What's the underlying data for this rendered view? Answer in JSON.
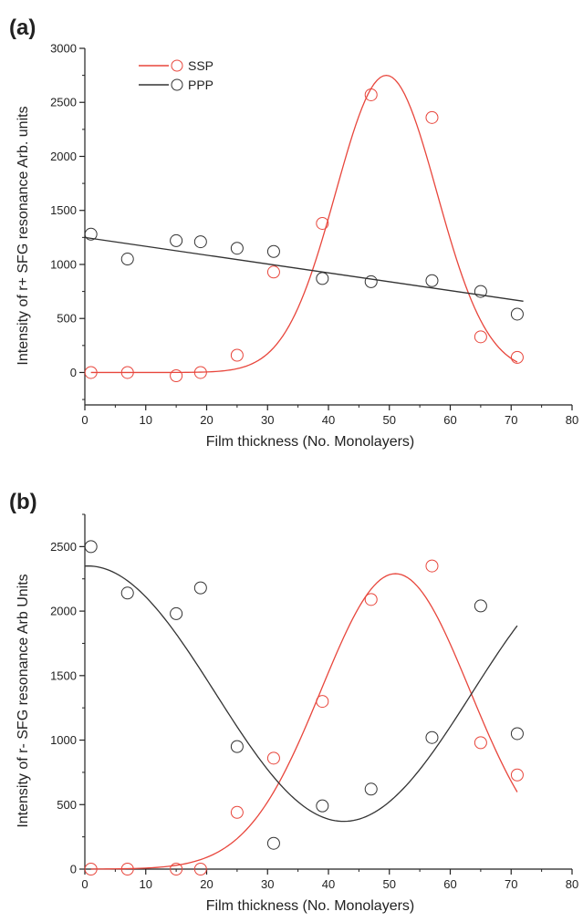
{
  "chart_data": [
    {
      "panel_label": "(a)",
      "type": "scatter",
      "xlabel": "Film thickness (No. Monolayers)",
      "ylabel": "Intensity of r+ SFG resonance Arb. units",
      "xlim": [
        0,
        80
      ],
      "ylim": [
        -300,
        3000
      ],
      "xticks": [
        0,
        10,
        20,
        30,
        40,
        50,
        60,
        70,
        80
      ],
      "yticks": [
        0,
        500,
        1000,
        1500,
        2000,
        2500,
        3000
      ],
      "legend": {
        "placement": "top-left"
      },
      "series": [
        {
          "name": "SSP",
          "color": "#e8463c",
          "points": [
            [
              1,
              0
            ],
            [
              7,
              0
            ],
            [
              15,
              -30
            ],
            [
              19,
              0
            ],
            [
              25,
              160
            ],
            [
              31,
              930
            ],
            [
              39,
              1380
            ],
            [
              47,
              2570
            ],
            [
              57,
              2360
            ],
            [
              65,
              330
            ],
            [
              71,
              140
            ]
          ],
          "fit": {
            "kind": "gaussian",
            "baseline": 0,
            "amplitude": 2750,
            "center": 49.5,
            "sigma": 8.3,
            "x_range": [
              1,
              71
            ]
          }
        },
        {
          "name": "PPP",
          "color": "#333333",
          "points": [
            [
              1,
              1280
            ],
            [
              7,
              1050
            ],
            [
              15,
              1220
            ],
            [
              19,
              1210
            ],
            [
              25,
              1150
            ],
            [
              31,
              1120
            ],
            [
              39,
              870
            ],
            [
              47,
              840
            ],
            [
              57,
              850
            ],
            [
              65,
              750
            ],
            [
              71,
              540
            ]
          ],
          "fit": {
            "kind": "linear",
            "intercept": 1250,
            "slope": -8.2,
            "x_range": [
              0,
              72
            ]
          }
        }
      ]
    },
    {
      "panel_label": "(b)",
      "type": "scatter",
      "xlabel": "Film thickness (No. Monolayers)",
      "ylabel": "Intensity  of r- SFG resonance Arb Units",
      "xlim": [
        0,
        80
      ],
      "ylim": [
        0,
        2750
      ],
      "xticks": [
        0,
        10,
        20,
        30,
        40,
        50,
        60,
        70,
        80
      ],
      "yticks": [
        0,
        500,
        1000,
        1500,
        2000,
        2500
      ],
      "series": [
        {
          "color": "#e8463c",
          "points": [
            [
              1,
              0
            ],
            [
              7,
              0
            ],
            [
              15,
              0
            ],
            [
              19,
              0
            ],
            [
              25,
              440
            ],
            [
              31,
              860
            ],
            [
              39,
              1300
            ],
            [
              47,
              2090
            ],
            [
              57,
              2350
            ],
            [
              65,
              980
            ],
            [
              71,
              730
            ]
          ],
          "fit": {
            "kind": "gaussian",
            "baseline": 0,
            "amplitude": 2290,
            "center": 51,
            "sigma": 12.2,
            "x_range": [
              1,
              71
            ]
          }
        },
        {
          "color": "#333333",
          "points": [
            [
              1,
              2500
            ],
            [
              7,
              2140
            ],
            [
              15,
              1980
            ],
            [
              19,
              2180
            ],
            [
              25,
              950
            ],
            [
              31,
              200
            ],
            [
              39,
              490
            ],
            [
              47,
              620
            ],
            [
              57,
              1020
            ],
            [
              65,
              2040
            ],
            [
              71,
              1050
            ]
          ],
          "fit": {
            "kind": "cosine",
            "offset": 1360,
            "amplitude": 990,
            "center": 42.5,
            "period": 84,
            "x_range": [
              0,
              71
            ]
          }
        }
      ]
    }
  ]
}
